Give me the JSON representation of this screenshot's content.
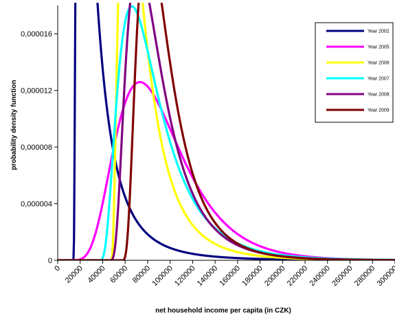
{
  "chart_data": {
    "type": "line",
    "title": "",
    "xlabel": "net household income per capita (in CZK)",
    "ylabel": "probability density function",
    "xlim": [
      0,
      300000
    ],
    "ylim": [
      0,
      1.8e-05
    ],
    "x_ticks": [
      0,
      20000,
      40000,
      60000,
      80000,
      100000,
      120000,
      140000,
      160000,
      180000,
      200000,
      220000,
      240000,
      260000,
      280000,
      300000
    ],
    "x_tick_labels": [
      "0",
      "20000",
      "40000",
      "60000",
      "80000",
      "100000",
      "120000",
      "140000",
      "160000",
      "180000",
      "200000",
      "220000",
      "240000",
      "260000",
      "280000",
      "300000"
    ],
    "y_ticks": [
      0,
      4e-06,
      8e-06,
      1.2e-05,
      1.6e-05
    ],
    "y_tick_labels": [
      "0",
      "0,000004",
      "0,000008",
      "0,000012",
      "0,000016"
    ],
    "grid": false,
    "legend_position": "top-right",
    "series": [
      {
        "name": "Year 2002",
        "color": "#000080",
        "params": {
          "threshold": 14000,
          "mu": 9.6,
          "sigma": 0.95
        }
      },
      {
        "name": "Year 2005",
        "color": "#ff00ff",
        "params": {
          "threshold": 0,
          "mu": 11.36,
          "sigma": 0.4
        }
      },
      {
        "name": "Year 2006",
        "color": "#ffff00",
        "params": {
          "threshold": 47000,
          "mu": 10.1,
          "sigma": 0.75
        }
      },
      {
        "name": "Year 2007",
        "color": "#00ffff",
        "params": {
          "threshold": 35000,
          "mu": 10.7,
          "sigma": 0.6
        }
      },
      {
        "name": "Year 2008",
        "color": "#800080",
        "params": {
          "threshold": 45000,
          "mu": 10.55,
          "sigma": 0.6
        }
      },
      {
        "name": "Year 2009",
        "color": "#800000",
        "params": {
          "threshold": 56000,
          "mu": 10.45,
          "sigma": 0.6
        }
      }
    ]
  }
}
